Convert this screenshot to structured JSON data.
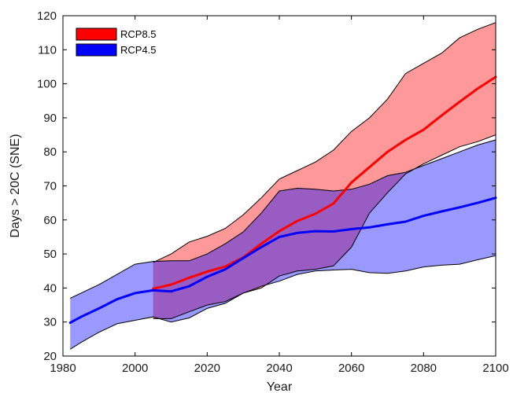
{
  "chart_data": {
    "type": "area",
    "xlabel": "Year",
    "ylabel": "Days > 20C (SNE)",
    "xlim": [
      1980,
      2100
    ],
    "ylim": [
      20,
      120
    ],
    "xticks": [
      1980,
      2000,
      2020,
      2040,
      2060,
      2080,
      2100
    ],
    "yticks": [
      20,
      30,
      40,
      50,
      60,
      70,
      80,
      90,
      100,
      110,
      120
    ],
    "legend_position": "top-left",
    "grid": false,
    "series": [
      {
        "name": "RCP8.5",
        "color": "#ff0000",
        "fill_color": "#ff0000",
        "x": [
          2005,
          2010,
          2015,
          2020,
          2025,
          2030,
          2035,
          2040,
          2045,
          2050,
          2055,
          2060,
          2065,
          2070,
          2075,
          2080,
          2085,
          2090,
          2095,
          2100
        ],
        "mean": [
          39.8,
          41,
          43,
          44.8,
          46.3,
          49,
          53,
          56.7,
          59.7,
          61.8,
          64.8,
          71,
          75.5,
          80,
          83.5,
          86.5,
          90.7,
          94.7,
          98.6,
          102
        ],
        "upper": [
          47.5,
          50,
          53.5,
          55.2,
          57.5,
          61.5,
          66.5,
          72,
          74.5,
          77,
          80.5,
          86,
          90,
          95.5,
          103,
          106,
          109,
          113.5,
          116,
          118
        ],
        "lower": [
          31,
          31,
          33,
          35,
          36,
          38.5,
          40,
          43.5,
          45,
          45.5,
          46.5,
          52,
          62,
          68,
          73.5,
          76.5,
          79,
          81.5,
          83,
          85
        ]
      },
      {
        "name": "RCP4.5",
        "color": "#0000ff",
        "fill_color": "#0000ff",
        "x": [
          1982,
          1985,
          1990,
          1995,
          2000,
          2005,
          2010,
          2015,
          2020,
          2025,
          2030,
          2035,
          2040,
          2045,
          2050,
          2055,
          2060,
          2065,
          2070,
          2075,
          2080,
          2085,
          2090,
          2095,
          2100
        ],
        "mean": [
          29.8,
          31.5,
          34,
          36.7,
          38.5,
          39.3,
          39,
          40.5,
          43.3,
          45.5,
          48.8,
          52,
          55,
          56.2,
          56.7,
          56.6,
          57.3,
          57.8,
          58.7,
          59.5,
          61.2,
          62.5,
          63.7,
          65,
          66.5
        ],
        "upper": [
          37,
          38.5,
          41,
          44,
          47,
          47.8,
          48,
          48,
          50,
          53,
          56.5,
          62,
          68.5,
          69.3,
          69,
          68.5,
          69,
          70.5,
          73,
          74,
          76,
          78,
          80,
          82,
          83.5
        ],
        "lower": [
          22,
          24,
          27,
          29.5,
          30.5,
          31.5,
          30,
          31.2,
          34,
          35.5,
          38.5,
          40.5,
          42,
          44,
          45,
          45.3,
          45.5,
          44.5,
          44.3,
          45,
          46.2,
          46.7,
          47,
          48.3,
          49.5
        ]
      }
    ]
  }
}
